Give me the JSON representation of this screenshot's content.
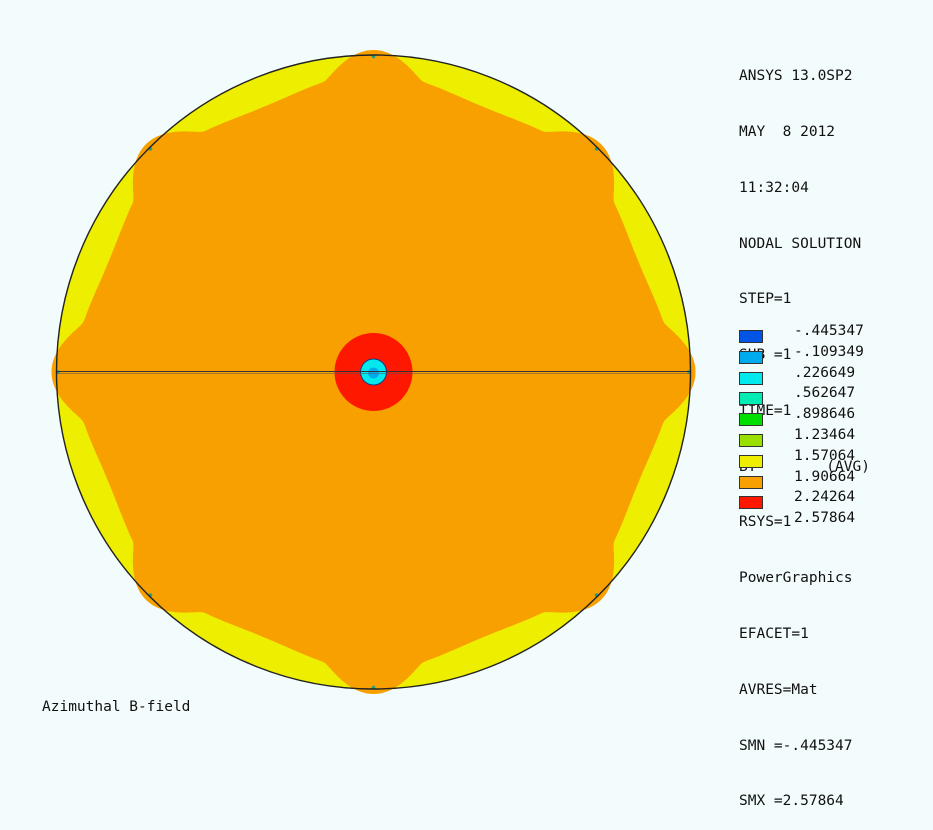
{
  "info_lines": [
    "ANSYS 13.0SP2",
    "MAY  8 2012",
    "11:32:04",
    "NODAL SOLUTION",
    "STEP=1",
    "SUB =1",
    "TIME=1",
    "BY        (AVG)",
    "RSYS=1",
    "PowerGraphics",
    "EFACET=1",
    "AVRES=Mat",
    "SMN =-.445347",
    "SMX =2.57864"
  ],
  "legend": [
    {
      "label": "-.445347",
      "color": "#0055e6"
    },
    {
      "label": "-.109349",
      "color": "#00aaee"
    },
    {
      "label": ".226649",
      "color": "#00eaee"
    },
    {
      "label": ".562647",
      "color": "#00ecb4"
    },
    {
      "label": ".898646",
      "color": "#00e000"
    },
    {
      "label": "1.23464",
      "color": "#99e000"
    },
    {
      "label": "1.57064",
      "color": "#eeee00"
    },
    {
      "label": "1.90664",
      "color": "#f8a000"
    },
    {
      "label": "2.24264",
      "color": "#ff1800"
    },
    {
      "label": "2.57864",
      "color": ""
    }
  ],
  "caption": "Azimuthal B-field",
  "colors": {
    "background": "#f3fcfd",
    "outer_band": "#eeee00",
    "bulk": "#f8a000",
    "hot_ring": "#ff1800",
    "core": "#00eaee",
    "core_center": "#00aaee",
    "outline": "#222222"
  }
}
